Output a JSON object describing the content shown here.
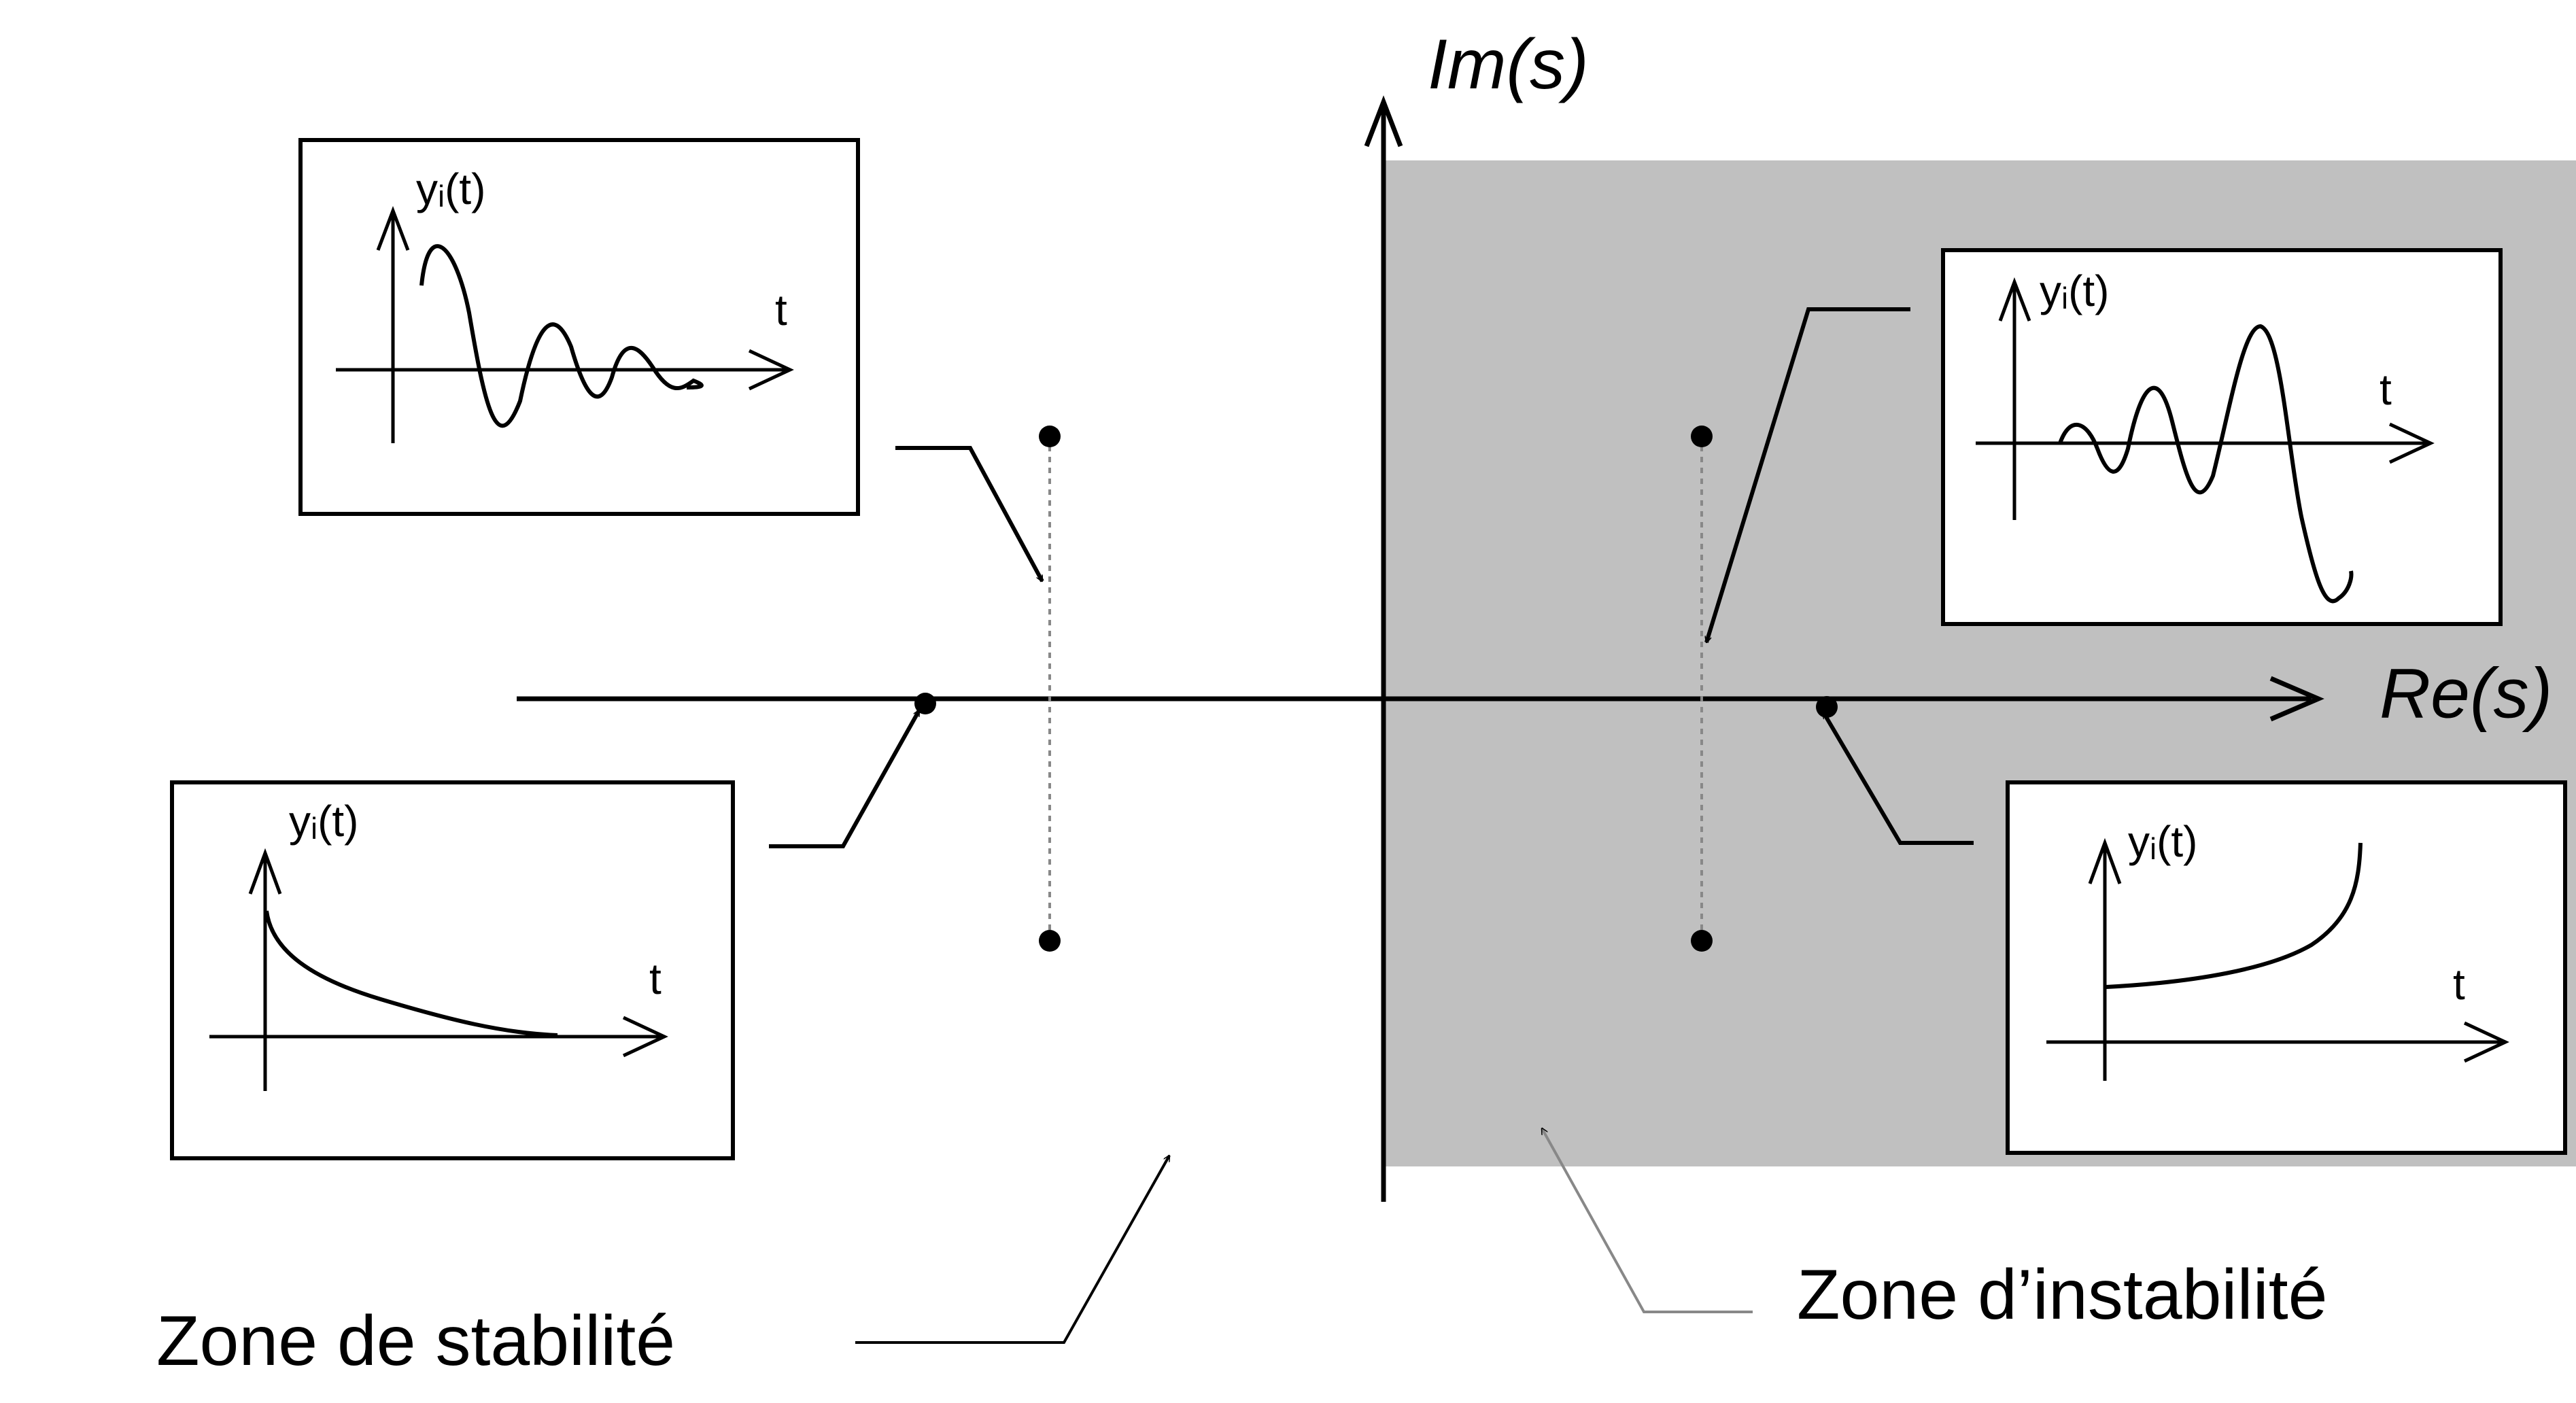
{
  "diagram": {
    "axes": {
      "imaginary_label": "Im(s)",
      "real_label": "Re(s)"
    },
    "zones": {
      "stable_label": "Zone de stabilité",
      "unstable_label": "Zone d’instabilité",
      "unstable_fill": "#c0c0c0"
    },
    "insets": [
      {
        "id": "damped-oscillation",
        "y_label": "yᵢ(t)",
        "t_label": "t"
      },
      {
        "id": "growing-oscillation",
        "y_label": "yᵢ(t)",
        "t_label": "t"
      },
      {
        "id": "decaying-exponential",
        "y_label": "yᵢ(t)",
        "t_label": "t"
      },
      {
        "id": "growing-exponential",
        "y_label": "yᵢ(t)",
        "t_label": "t"
      }
    ],
    "colors": {
      "line": "#000000",
      "dotted_line": "#888888",
      "background": "#ffffff"
    }
  }
}
